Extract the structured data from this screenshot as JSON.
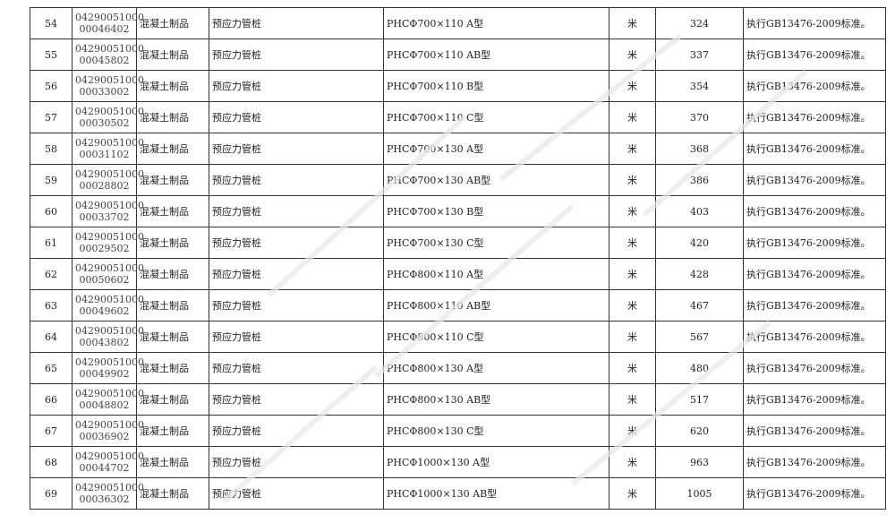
{
  "rows": [
    {
      "no": "54",
      "code1": "04290051000",
      "code2": "00046402",
      "category": "混凝土制品",
      "name": "预应力管桩",
      "spec": "PHCΦ700×110 A型",
      "unit": "米",
      "price": "324",
      "note": "执行GB13476-2009标准。"
    },
    {
      "no": "55",
      "code1": "04290051000",
      "code2": "00045802",
      "category": "混凝土制品",
      "name": "预应力管桩",
      "spec": "PHCΦ700×110 AB型",
      "unit": "米",
      "price": "337",
      "note": "执行GB13476-2009标准。"
    },
    {
      "no": "56",
      "code1": "04290051000",
      "code2": "00033002",
      "category": "混凝土制品",
      "name": "预应力管桩",
      "spec": "PHCΦ700×110 B型",
      "unit": "米",
      "price": "354",
      "note": "执行GB13476-2009标准。"
    },
    {
      "no": "57",
      "code1": "04290051000",
      "code2": "00030502",
      "category": "混凝土制品",
      "name": "预应力管桩",
      "spec": "PHCΦ700×110 C型",
      "unit": "米",
      "price": "370",
      "note": "执行GB13476-2009标准。"
    },
    {
      "no": "58",
      "code1": "04290051000",
      "code2": "00031102",
      "category": "混凝土制品",
      "name": "预应力管桩",
      "spec": "PHCΦ700×130 A型",
      "unit": "米",
      "price": "368",
      "note": "执行GB13476-2009标准。"
    },
    {
      "no": "59",
      "code1": "04290051000",
      "code2": "00028802",
      "category": "混凝土制品",
      "name": "预应力管桩",
      "spec": "PHCΦ700×130 AB型",
      "unit": "米",
      "price": "386",
      "note": "执行GB13476-2009标准。"
    },
    {
      "no": "60",
      "code1": "04290051000",
      "code2": "00033702",
      "category": "混凝土制品",
      "name": "预应力管桩",
      "spec": "PHCΦ700×130 B型",
      "unit": "米",
      "price": "403",
      "note": "执行GB13476-2009标准。"
    },
    {
      "no": "61",
      "code1": "04290051000",
      "code2": "00029502",
      "category": "混凝土制品",
      "name": "预应力管桩",
      "spec": "PHCΦ700×130 C型",
      "unit": "米",
      "price": "420",
      "note": "执行GB13476-2009标准。"
    },
    {
      "no": "62",
      "code1": "04290051000",
      "code2": "00050602",
      "category": "混凝土制品",
      "name": "预应力管桩",
      "spec": "PHCΦ800×110 A型",
      "unit": "米",
      "price": "428",
      "note": "执行GB13476-2009标准。"
    },
    {
      "no": "63",
      "code1": "04290051000",
      "code2": "00049602",
      "category": "混凝土制品",
      "name": "预应力管桩",
      "spec": "PHCΦ800×110 AB型",
      "unit": "米",
      "price": "467",
      "note": "执行GB13476-2009标准。"
    },
    {
      "no": "64",
      "code1": "04290051000",
      "code2": "00043802",
      "category": "混凝土制品",
      "name": "预应力管桩",
      "spec": "PHCΦ800×110 C型",
      "unit": "米",
      "price": "567",
      "note": "执行GB13476-2009标准。"
    },
    {
      "no": "65",
      "code1": "04290051000",
      "code2": "00049902",
      "category": "混凝土制品",
      "name": "预应力管桩",
      "spec": "PHCΦ800×130 A型",
      "unit": "米",
      "price": "480",
      "note": "执行GB13476-2009标准。"
    },
    {
      "no": "66",
      "code1": "04290051000",
      "code2": "00048802",
      "category": "混凝土制品",
      "name": "预应力管桩",
      "spec": "PHCΦ800×130 AB型",
      "unit": "米",
      "price": "517",
      "note": "执行GB13476-2009标准。"
    },
    {
      "no": "67",
      "code1": "04290051000",
      "code2": "00036902",
      "category": "混凝土制品",
      "name": "预应力管桩",
      "spec": "PHCΦ800×130 C型",
      "unit": "米",
      "price": "620",
      "note": "执行GB13476-2009标准。"
    },
    {
      "no": "68",
      "code1": "04290051000",
      "code2": "00044702",
      "category": "混凝土制品",
      "name": "预应力管桩",
      "spec": "PHCΦ1000×130 A型",
      "unit": "米",
      "price": "963",
      "note": "执行GB13476-2009标准。"
    },
    {
      "no": "69",
      "code1": "04290051000",
      "code2": "00036302",
      "category": "混凝土制品",
      "name": "预应力管桩",
      "spec": "PHCΦ1000×130 AB型",
      "unit": "米",
      "price": "1005",
      "note": "执行GB13476-2009标准。"
    }
  ]
}
